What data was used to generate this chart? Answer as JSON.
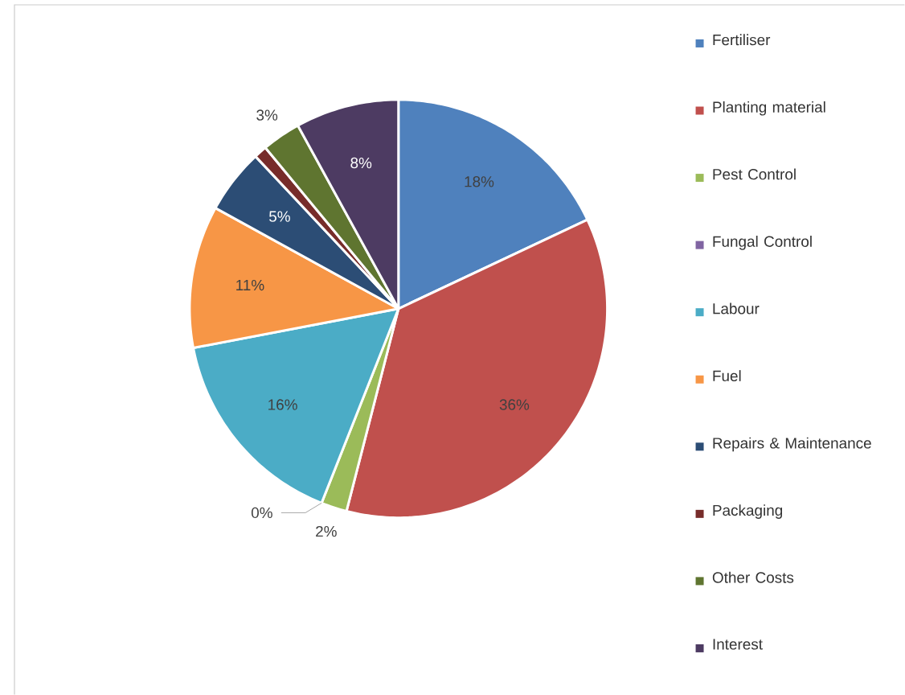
{
  "chart_data": {
    "type": "pie",
    "categories": [
      "Fertiliser",
      "Planting material",
      "Pest Control",
      "Fungal Control",
      "Labour",
      "Fuel",
      "Repairs & Maintenance",
      "Packaging",
      "Other Costs",
      "Interest"
    ],
    "values": [
      18,
      36,
      2,
      0,
      16,
      11,
      5,
      1,
      3,
      8
    ],
    "value_labels": [
      "18%",
      "36%",
      "2%",
      "0%",
      "16%",
      "11%",
      "5%",
      null,
      "3%",
      "8%"
    ],
    "colors": [
      "#4f81bd",
      "#c0504d",
      "#9bbb59",
      "#8064a2",
      "#4bacc6",
      "#f79646",
      "#2c4d75",
      "#772c2a",
      "#5f7530",
      "#4d3b62"
    ],
    "legend": "right"
  }
}
